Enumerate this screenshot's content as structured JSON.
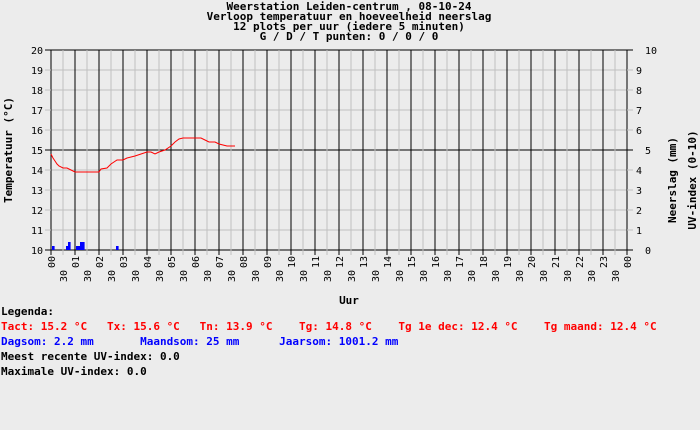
{
  "chart_data": {
    "type": "line",
    "title": [
      "Weerstation Leiden-centrum , 08-10-24",
      "Verloop temperatuur en hoeveelheid neerslag",
      "12 plots per uur (iedere 5 minuten)",
      "G / D / T punten: 0 / 0 / 0"
    ],
    "xlabel": "Uur",
    "ylabel": "Temperatuur (°C)",
    "y2label": [
      "Neerslag (mm)",
      "UV-index (0-10)"
    ],
    "xlim": [
      0,
      24
    ],
    "ylim": [
      10,
      20
    ],
    "y2lim": [
      0,
      10
    ],
    "grid": true,
    "x_ticks": [
      "00",
      "30",
      "01",
      "30",
      "02",
      "30",
      "03",
      "30",
      "04",
      "30",
      "05",
      "30",
      "06",
      "30",
      "07",
      "30",
      "08",
      "30",
      "09",
      "30",
      "10",
      "30",
      "11",
      "30",
      "12",
      "30",
      "13",
      "30",
      "14",
      "30",
      "15",
      "30",
      "16",
      "30",
      "17",
      "30",
      "18",
      "30",
      "19",
      "30",
      "20",
      "30",
      "21",
      "30",
      "22",
      "30",
      "23",
      "30",
      "00"
    ],
    "y_ticks": [
      10,
      11,
      12,
      13,
      14,
      15,
      16,
      17,
      18,
      19,
      20
    ],
    "y2_ticks": [
      0,
      1,
      2,
      3,
      4,
      5,
      6,
      7,
      8,
      9,
      10
    ],
    "series": [
      {
        "kind": "temperature",
        "color": "#ff0000",
        "points": [
          [
            "00:00",
            14.8
          ],
          [
            "00:05",
            14.6
          ],
          [
            "00:10",
            14.45
          ],
          [
            "00:15",
            14.3
          ],
          [
            "00:20",
            14.2
          ],
          [
            "00:30",
            14.1
          ],
          [
            "00:40",
            14.1
          ],
          [
            "00:50",
            14.0
          ],
          [
            "01:00",
            13.9
          ],
          [
            "02:00",
            13.9
          ],
          [
            "02:05",
            14.05
          ],
          [
            "02:20",
            14.1
          ],
          [
            "02:30",
            14.3
          ],
          [
            "02:45",
            14.5
          ],
          [
            "03:00",
            14.5
          ],
          [
            "03:10",
            14.6
          ],
          [
            "03:30",
            14.7
          ],
          [
            "03:45",
            14.8
          ],
          [
            "04:00",
            14.9
          ],
          [
            "04:10",
            14.9
          ],
          [
            "04:20",
            14.8
          ],
          [
            "04:30",
            14.9
          ],
          [
            "04:45",
            15.0
          ],
          [
            "05:00",
            15.2
          ],
          [
            "05:10",
            15.4
          ],
          [
            "05:20",
            15.55
          ],
          [
            "05:30",
            15.6
          ],
          [
            "06:15",
            15.6
          ],
          [
            "06:25",
            15.5
          ],
          [
            "06:35",
            15.4
          ],
          [
            "06:50",
            15.4
          ],
          [
            "07:00",
            15.3
          ],
          [
            "07:20",
            15.2
          ],
          [
            "07:40",
            15.2
          ]
        ]
      },
      {
        "kind": "precipitation",
        "color": "#0000ff",
        "bars": [
          [
            "00:05",
            0.2
          ],
          [
            "00:40",
            0.2
          ],
          [
            "00:45",
            0.4
          ],
          [
            "01:05",
            0.2
          ],
          [
            "01:10",
            0.2
          ],
          [
            "01:15",
            0.4
          ],
          [
            "01:20",
            0.4
          ],
          [
            "02:45",
            0.2
          ]
        ]
      }
    ]
  },
  "legend": {
    "heading": "Legenda:",
    "temp_line": "Tact: 15.2 °C   Tx: 15.6 °C   Tn: 13.9 °C    Tg: 14.8 °C    Tg 1e dec: 12.4 °C    Tg maand: 12.4 °C",
    "rain_line": "Dagsom: 2.2 mm       Maandsom: 25 mm      Jaarsom: 1001.2 mm",
    "uv_recent": "Meest recente UV-index: 0.0",
    "uv_max": "Maximale UV-index: 0.0"
  },
  "colors": {
    "temperature": "#ff0000",
    "precipitation": "#0000ff",
    "grid": "#c0c0c0",
    "background": "#ececec"
  }
}
